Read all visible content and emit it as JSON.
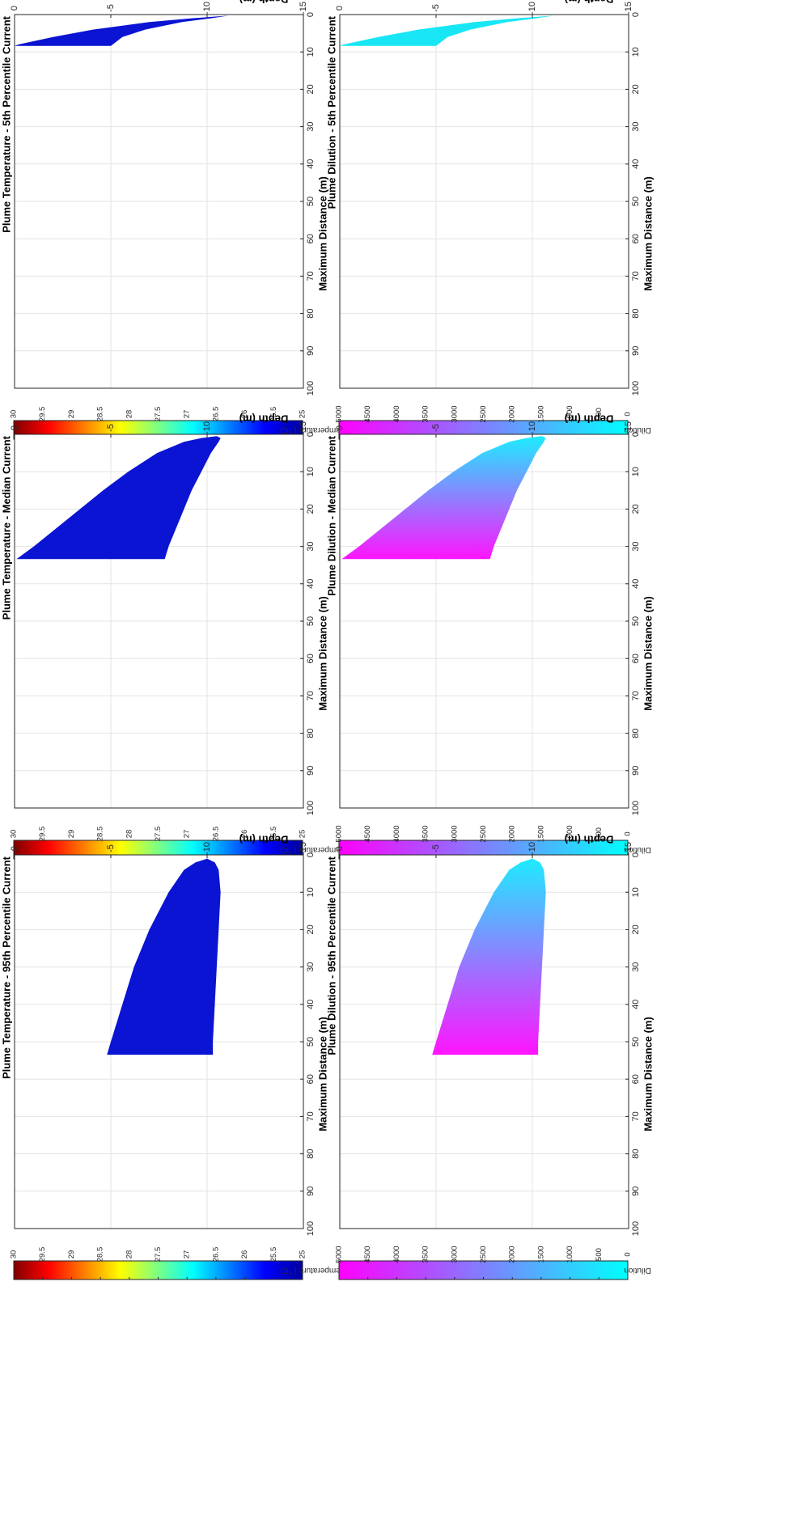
{
  "chart_data": [
    {
      "id": "temp-5th",
      "type": "area",
      "title": "Plume Temperature - 5th Percentile Current",
      "xlabel": "Maximum Distance (m)",
      "ylabel": "Depth (m)",
      "xlim": [
        0,
        100
      ],
      "ylim": [
        -15,
        0
      ],
      "x_ticks": [
        "0",
        "10",
        "20",
        "30",
        "40",
        "50",
        "60",
        "70",
        "80",
        "90",
        "100"
      ],
      "y_ticks": [
        "0",
        "-5",
        "-10",
        "-15"
      ],
      "grid": true,
      "fill_color": "#0a14d2",
      "upper_edge": [
        [
          0.3,
          -11.1
        ],
        [
          1,
          -10.2
        ],
        [
          2,
          -8.7
        ],
        [
          4,
          -6.8
        ],
        [
          6,
          -5.6
        ],
        [
          8,
          -5.1
        ],
        [
          8.4,
          -5.0
        ]
      ],
      "lower_edge": [
        [
          0.3,
          -11.1
        ],
        [
          1,
          -9.2
        ],
        [
          2,
          -7.0
        ],
        [
          4,
          -4.1
        ],
        [
          6,
          -2.0
        ],
        [
          8,
          -0.2
        ],
        [
          8.4,
          0.0
        ]
      ],
      "colorbar": {
        "label": "Temperature ( °C)",
        "ticks": [
          "25",
          "25.5",
          "26",
          "26.5",
          "27",
          "27.5",
          "28",
          "28.5",
          "29",
          "29.5",
          "30"
        ],
        "min": 25,
        "max": 30,
        "scheme": "jet"
      }
    },
    {
      "id": "temp-median",
      "type": "area",
      "title": "Plume Temperature - Median Current",
      "xlabel": "Maximum Distance (m)",
      "ylabel": "Depth (m)",
      "xlim": [
        0,
        100
      ],
      "ylim": [
        -15,
        0
      ],
      "x_ticks": [
        "0",
        "10",
        "20",
        "30",
        "40",
        "50",
        "60",
        "70",
        "80",
        "90",
        "100"
      ],
      "y_ticks": [
        "0",
        "-5",
        "-10",
        "-15"
      ],
      "grid": true,
      "fill_color": "#0a14d2",
      "upper_edge": [
        [
          0.5,
          -10.5
        ],
        [
          1,
          -10.7
        ],
        [
          2,
          -10.6
        ],
        [
          5,
          -10.2
        ],
        [
          10,
          -9.7
        ],
        [
          15,
          -9.2
        ],
        [
          20,
          -8.8
        ],
        [
          25,
          -8.4
        ],
        [
          30,
          -8.0
        ],
        [
          33.4,
          -7.8
        ]
      ],
      "lower_edge": [
        [
          0.5,
          -10.5
        ],
        [
          1,
          -9.7
        ],
        [
          2,
          -8.8
        ],
        [
          5,
          -7.4
        ],
        [
          10,
          -5.9
        ],
        [
          15,
          -4.6
        ],
        [
          20,
          -3.4
        ],
        [
          25,
          -2.2
        ],
        [
          30,
          -1.0
        ],
        [
          33.4,
          -0.1
        ]
      ],
      "colorbar": {
        "label": "Temperature ( °C)",
        "ticks": [
          "25",
          "25.5",
          "26",
          "26.5",
          "27",
          "27.5",
          "28",
          "28.5",
          "29",
          "29.5",
          "30"
        ],
        "min": 25,
        "max": 30,
        "scheme": "jet"
      }
    },
    {
      "id": "temp-95th",
      "type": "area",
      "title": "Plume Temperature - 95th Percentile Current",
      "xlabel": "Maximum Distance (m)",
      "ylabel": "Depth (m)",
      "xlim": [
        0,
        100
      ],
      "ylim": [
        -15,
        0
      ],
      "x_ticks": [
        "0",
        "10",
        "20",
        "30",
        "40",
        "50",
        "60",
        "70",
        "80",
        "90",
        "100"
      ],
      "y_ticks": [
        "0",
        "-5",
        "-10",
        "-15"
      ],
      "grid": true,
      "fill_color": "#0a14d2",
      "upper_edge": [
        [
          1,
          -10.0
        ],
        [
          2,
          -10.4
        ],
        [
          4,
          -10.6
        ],
        [
          10,
          -10.7
        ],
        [
          20,
          -10.6
        ],
        [
          30,
          -10.5
        ],
        [
          40,
          -10.4
        ],
        [
          50,
          -10.3
        ],
        [
          53.5,
          -10.3
        ]
      ],
      "lower_edge": [
        [
          1,
          -10.0
        ],
        [
          2,
          -9.4
        ],
        [
          4,
          -8.8
        ],
        [
          10,
          -8.0
        ],
        [
          20,
          -7.0
        ],
        [
          30,
          -6.2
        ],
        [
          40,
          -5.6
        ],
        [
          50,
          -5.0
        ],
        [
          53.5,
          -4.8
        ]
      ],
      "colorbar": {
        "label": "Temperature ( °C)",
        "ticks": [
          "25",
          "25.5",
          "26",
          "26.5",
          "27",
          "27.5",
          "28",
          "28.5",
          "29",
          "29.5",
          "30"
        ],
        "min": 25,
        "max": 30,
        "scheme": "jet"
      }
    },
    {
      "id": "dil-5th",
      "type": "area",
      "title": "Plume Dilution - 5th Percentile Current",
      "xlabel": "Maximum Distance (m)",
      "ylabel": "Depth (m)",
      "xlim": [
        0,
        100
      ],
      "ylim": [
        -15,
        0
      ],
      "x_ticks": [
        "0",
        "10",
        "20",
        "30",
        "40",
        "50",
        "60",
        "70",
        "80",
        "90",
        "100"
      ],
      "y_ticks": [
        "0",
        "-5",
        "-10",
        "-15"
      ],
      "grid": true,
      "fill_color": "#19e6f5",
      "upper_edge": [
        [
          0.3,
          -11.1
        ],
        [
          1,
          -10.2
        ],
        [
          2,
          -8.7
        ],
        [
          4,
          -6.8
        ],
        [
          6,
          -5.6
        ],
        [
          8,
          -5.1
        ],
        [
          8.4,
          -5.0
        ]
      ],
      "lower_edge": [
        [
          0.3,
          -11.1
        ],
        [
          1,
          -9.2
        ],
        [
          2,
          -7.0
        ],
        [
          4,
          -4.1
        ],
        [
          6,
          -2.0
        ],
        [
          8,
          -0.2
        ],
        [
          8.4,
          0.0
        ]
      ],
      "colorbar": {
        "label": "Dilution",
        "ticks": [
          "0",
          "500",
          "1000",
          "1500",
          "2000",
          "2500",
          "3000",
          "3500",
          "4000",
          "4500",
          "5000"
        ],
        "min": 0,
        "max": 5000,
        "scheme": "cool"
      }
    },
    {
      "id": "dil-median",
      "type": "area",
      "title": "Plume Dilution - Median Current",
      "xlabel": "Maximum Distance (m)",
      "ylabel": "Depth (m)",
      "xlim": [
        0,
        100
      ],
      "ylim": [
        -15,
        0
      ],
      "x_ticks": [
        "0",
        "10",
        "20",
        "30",
        "40",
        "50",
        "60",
        "70",
        "80",
        "90",
        "100"
      ],
      "y_ticks": [
        "0",
        "-5",
        "-10",
        "-15"
      ],
      "grid": true,
      "gradient": [
        "#19f0ff",
        "#ff14ff"
      ],
      "upper_edge": [
        [
          0.5,
          -10.5
        ],
        [
          1,
          -10.7
        ],
        [
          2,
          -10.6
        ],
        [
          5,
          -10.2
        ],
        [
          10,
          -9.7
        ],
        [
          15,
          -9.2
        ],
        [
          20,
          -8.8
        ],
        [
          25,
          -8.4
        ],
        [
          30,
          -8.0
        ],
        [
          33.4,
          -7.8
        ]
      ],
      "lower_edge": [
        [
          0.5,
          -10.5
        ],
        [
          1,
          -9.7
        ],
        [
          2,
          -8.8
        ],
        [
          5,
          -7.4
        ],
        [
          10,
          -5.9
        ],
        [
          15,
          -4.6
        ],
        [
          20,
          -3.4
        ],
        [
          25,
          -2.2
        ],
        [
          30,
          -1.0
        ],
        [
          33.4,
          -0.1
        ]
      ],
      "colorbar": {
        "label": "Dilution",
        "ticks": [
          "0",
          "500",
          "1000",
          "1500",
          "2000",
          "2500",
          "3000",
          "3500",
          "4000",
          "4500",
          "5000"
        ],
        "min": 0,
        "max": 5000,
        "scheme": "cool"
      }
    },
    {
      "id": "dil-95th",
      "type": "area",
      "title": "Plume Dilution - 95th Percentile Current",
      "xlabel": "Maximum Distance (m)",
      "ylabel": "Depth (m)",
      "xlim": [
        0,
        100
      ],
      "ylim": [
        -15,
        0
      ],
      "x_ticks": [
        "0",
        "10",
        "20",
        "30",
        "40",
        "50",
        "60",
        "70",
        "80",
        "90",
        "100"
      ],
      "y_ticks": [
        "0",
        "-5",
        "-10",
        "-15"
      ],
      "grid": true,
      "gradient": [
        "#19f0ff",
        "#ff14ff"
      ],
      "upper_edge": [
        [
          1,
          -10.0
        ],
        [
          2,
          -10.4
        ],
        [
          4,
          -10.6
        ],
        [
          10,
          -10.7
        ],
        [
          20,
          -10.6
        ],
        [
          30,
          -10.5
        ],
        [
          40,
          -10.4
        ],
        [
          50,
          -10.3
        ],
        [
          53.5,
          -10.3
        ]
      ],
      "lower_edge": [
        [
          1,
          -10.0
        ],
        [
          2,
          -9.4
        ],
        [
          4,
          -8.8
        ],
        [
          10,
          -8.0
        ],
        [
          20,
          -7.0
        ],
        [
          30,
          -6.2
        ],
        [
          40,
          -5.6
        ],
        [
          50,
          -5.0
        ],
        [
          53.5,
          -4.8
        ]
      ],
      "colorbar": {
        "label": "Dilution",
        "ticks": [
          "0",
          "500",
          "1000",
          "1500",
          "2000",
          "2500",
          "3000",
          "3500",
          "4000",
          "4500",
          "5000"
        ],
        "min": 0,
        "max": 5000,
        "scheme": "cool"
      }
    }
  ]
}
